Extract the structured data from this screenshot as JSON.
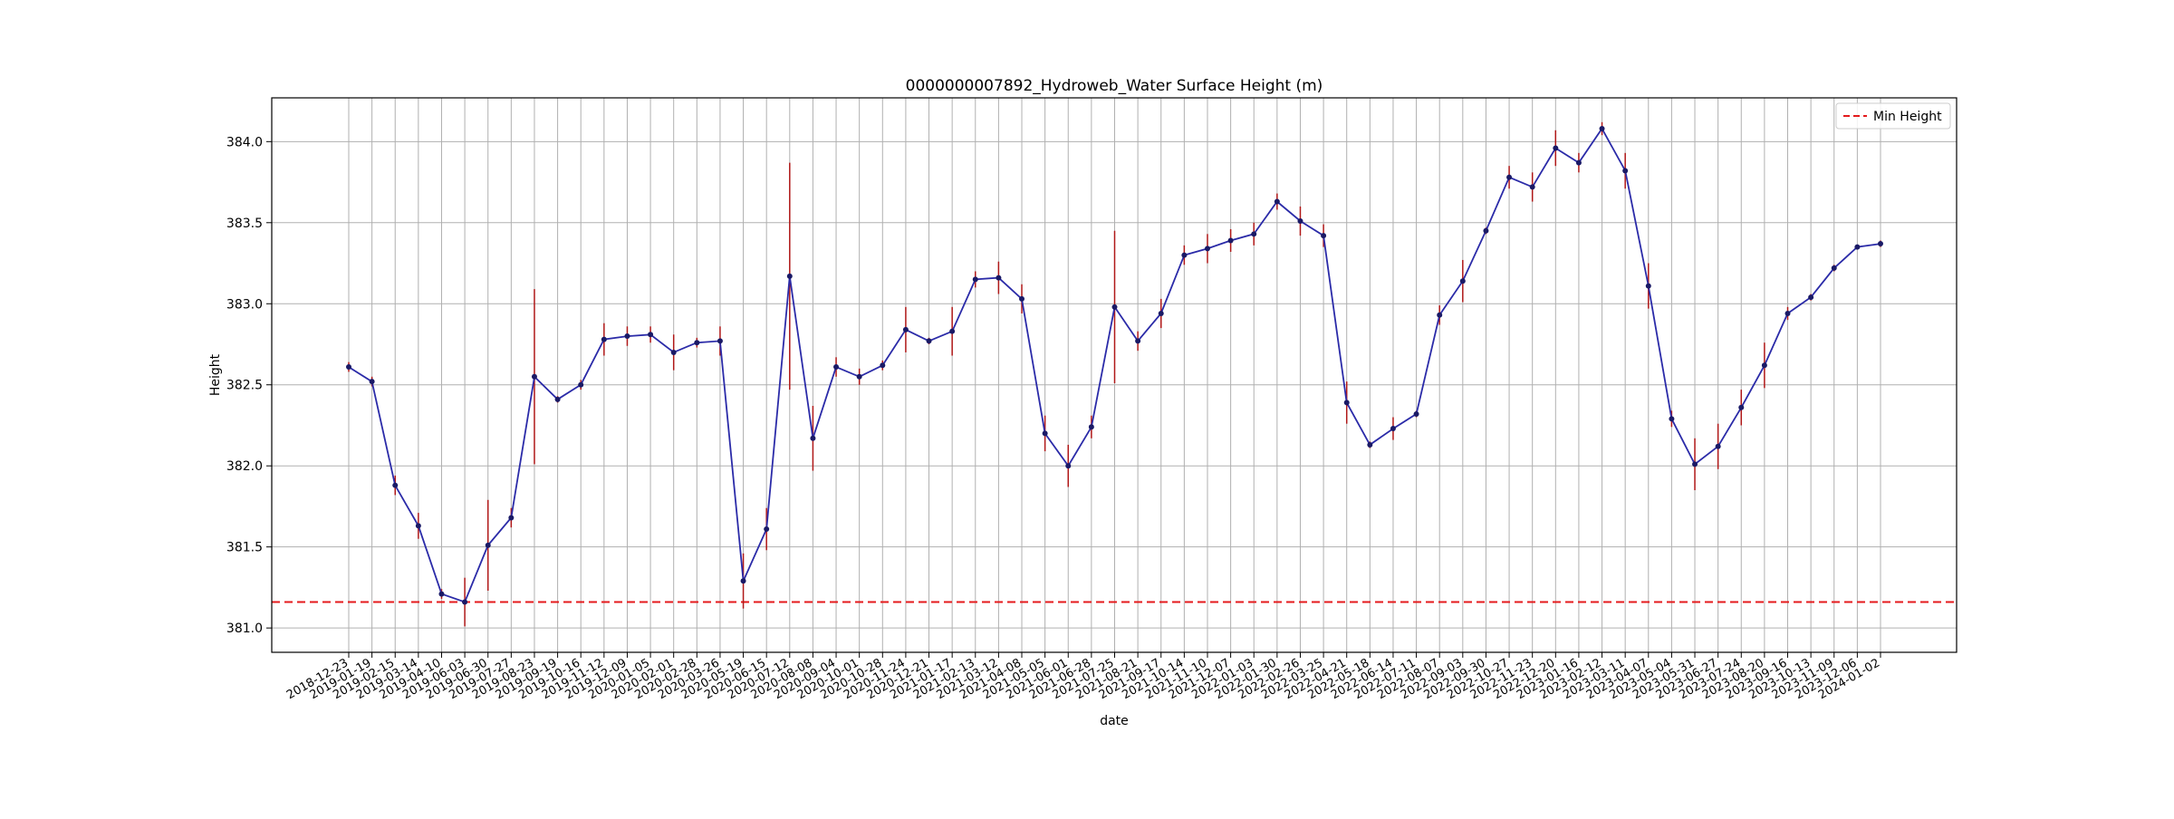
{
  "chart_data": {
    "type": "line",
    "title": "0000000007892_Hydroweb_Water Surface Height (m)",
    "xlabel": "date",
    "ylabel": "Height",
    "ylim": [
      380.85,
      384.27
    ],
    "y_ticks": [
      "381.0",
      "381.5",
      "382.0",
      "382.5",
      "383.0",
      "383.5",
      "384.0"
    ],
    "grid": true,
    "legend_position": "top-right",
    "legend": [
      {
        "label": "Min Height",
        "style": "dashed",
        "color": "#e41a1c"
      }
    ],
    "reference_lines": [
      {
        "name": "Min Height",
        "y": 381.16,
        "color": "#e41a1c"
      }
    ],
    "colors": {
      "line": "#2b2ba8",
      "marker": "#1a1a66",
      "error_bar": "#b01818"
    },
    "x": [
      "2018-12-23",
      "2019-01-19",
      "2019-02-15",
      "2019-03-14",
      "2019-04-10",
      "2019-06-03",
      "2019-06-30",
      "2019-07-27",
      "2019-08-23",
      "2019-09-19",
      "2019-10-16",
      "2019-11-12",
      "2019-12-09",
      "2020-01-05",
      "2020-02-01",
      "2020-02-28",
      "2020-03-26",
      "2020-05-19",
      "2020-06-15",
      "2020-07-12",
      "2020-08-08",
      "2020-09-04",
      "2020-10-01",
      "2020-10-28",
      "2020-11-24",
      "2020-12-21",
      "2021-01-17",
      "2021-02-13",
      "2021-03-12",
      "2021-04-08",
      "2021-05-05",
      "2021-06-01",
      "2021-06-28",
      "2021-07-25",
      "2021-08-21",
      "2021-09-17",
      "2021-10-14",
      "2021-11-10",
      "2021-12-07",
      "2022-01-03",
      "2022-01-30",
      "2022-02-26",
      "2022-03-25",
      "2022-04-21",
      "2022-05-18",
      "2022-06-14",
      "2022-07-11",
      "2022-08-07",
      "2022-09-03",
      "2022-09-30",
      "2022-10-27",
      "2022-11-23",
      "2022-12-20",
      "2023-01-16",
      "2023-02-12",
      "2023-03-11",
      "2023-04-07",
      "2023-05-04",
      "2023-05-31",
      "2023-06-27",
      "2023-07-24",
      "2023-08-20",
      "2023-09-16",
      "2023-10-13",
      "2023-11-09",
      "2023-12-06",
      "2024-01-02"
    ],
    "series": [
      {
        "values": [
          382.61,
          382.52,
          381.88,
          381.63,
          381.21,
          381.16,
          381.51,
          381.68,
          382.55,
          382.41,
          382.5,
          382.78,
          382.8,
          382.81,
          382.7,
          382.76,
          382.77,
          381.29,
          381.61,
          383.17,
          382.17,
          382.61,
          382.55,
          382.62,
          382.84,
          382.77,
          382.83,
          383.15,
          383.16,
          383.03,
          382.2,
          382.0,
          382.24,
          382.98,
          382.77,
          382.94,
          383.3,
          383.34,
          383.39,
          383.43,
          383.63,
          383.51,
          383.42,
          382.39,
          382.13,
          382.23,
          382.32,
          382.93,
          383.14,
          383.45,
          383.78,
          383.72,
          383.96,
          383.87,
          384.08,
          383.82,
          383.11,
          382.29,
          382.01,
          382.12,
          382.36,
          382.62,
          382.94,
          383.04,
          383.22,
          383.35,
          383.37
        ],
        "error": [
          0.03,
          0.03,
          0.06,
          0.08,
          0.03,
          0.15,
          0.28,
          0.06,
          0.54,
          0.02,
          0.03,
          0.1,
          0.06,
          0.05,
          0.11,
          0.03,
          0.09,
          0.17,
          0.13,
          0.7,
          0.2,
          0.06,
          0.05,
          0.03,
          0.14,
          0.02,
          0.15,
          0.05,
          0.1,
          0.09,
          0.11,
          0.13,
          0.07,
          0.47,
          0.06,
          0.09,
          0.06,
          0.09,
          0.07,
          0.07,
          0.05,
          0.09,
          0.07,
          0.13,
          0.02,
          0.07,
          0.02,
          0.06,
          0.13,
          0.02,
          0.07,
          0.09,
          0.11,
          0.06,
          0.04,
          0.11,
          0.14,
          0.05,
          0.16,
          0.14,
          0.11,
          0.14,
          0.04,
          0.02,
          0.02,
          0.01,
          0.02
        ]
      }
    ]
  }
}
